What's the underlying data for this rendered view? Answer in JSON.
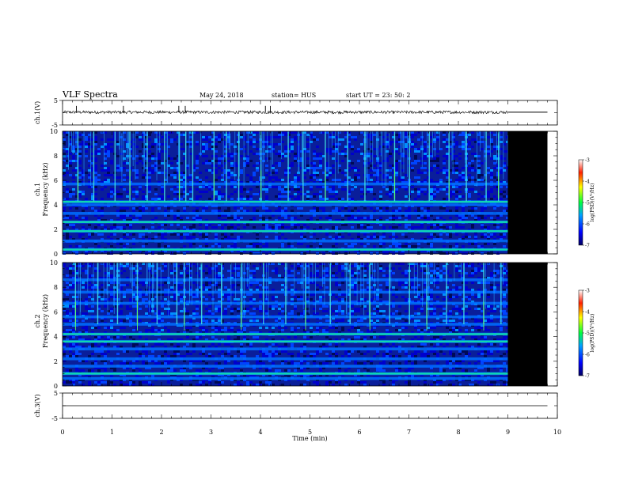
{
  "header": {
    "title": "VLF Spectra",
    "date": "May 24, 2018",
    "station": "station= HUS",
    "start": "start  UT  =   23: 50: 2"
  },
  "chart_data": [
    {
      "type": "line",
      "panel": "ch1-waveform",
      "ylabel": "ch.1(V)",
      "ylim": [
        -5,
        5
      ],
      "y_ticks": [
        5,
        -5
      ],
      "xlim": [
        0,
        10
      ],
      "data_end_min": 9.0,
      "trace_end_min": 9.8,
      "series": [
        {
          "baseline_v": 0.2,
          "noise_amplitude_v": 0.6,
          "spikes_min": [
            0.28,
            1.23,
            2.35,
            2.48,
            4.1,
            4.2
          ]
        }
      ]
    },
    {
      "type": "heatmap",
      "panel": "ch1-spectrogram",
      "ylabel_channel": "ch.1",
      "ylabel": "Frequency  (kHz)",
      "ylim": [
        0,
        10
      ],
      "y_ticks": [
        0,
        2,
        4,
        6,
        8,
        10
      ],
      "xlim": [
        0,
        10
      ],
      "data_end_min": 9.0,
      "no_data_end_min": 9.8,
      "colorbar": {
        "label": "log(PSD)(V²/Hz)",
        "range": [
          -7,
          -3
        ],
        "ticks": [
          -3,
          -4,
          -5,
          -6,
          -7
        ]
      },
      "bands_khz": [
        0.35,
        1.05,
        1.85,
        2.6,
        3.3,
        4.0,
        4.25,
        5.7
      ],
      "strong_bands_khz": [
        0.35,
        1.85,
        2.6,
        4.25
      ],
      "sferic_times_min": [
        0.3,
        0.62,
        1.05,
        1.35,
        1.7,
        2.05,
        2.35,
        2.48,
        2.62,
        3.05,
        3.3,
        3.55,
        4.0,
        4.55,
        4.85,
        5.3,
        5.75,
        6.1,
        6.7,
        7.0,
        7.4,
        7.8,
        8.15,
        8.55,
        8.8
      ]
    },
    {
      "type": "heatmap",
      "panel": "ch2-spectrogram",
      "ylabel_channel": "ch.2",
      "ylabel": "Frequency  (kHz)",
      "ylim": [
        0,
        10
      ],
      "y_ticks": [
        0,
        2,
        4,
        6,
        8,
        10
      ],
      "xlim": [
        0,
        10
      ],
      "data_end_min": 9.0,
      "no_data_end_min": 9.8,
      "colorbar": {
        "label": "log(PSD)(V²/Hz)",
        "range": [
          -7,
          -3
        ],
        "ticks": [
          -3,
          -4,
          -5,
          -6,
          -7
        ]
      },
      "bands_khz": [
        0.6,
        1.0,
        1.6,
        2.2,
        3.0,
        3.6,
        4.2,
        5.0,
        5.6,
        6.7,
        7.6,
        8.6
      ],
      "strong_bands_khz": [
        1.0,
        3.6,
        4.2
      ],
      "sferic_times_min": [
        0.25,
        0.7,
        1.1,
        1.5,
        1.9,
        2.3,
        2.45,
        2.8,
        3.2,
        3.6,
        4.05,
        4.5,
        4.9,
        5.4,
        5.8,
        6.2,
        6.6,
        7.0,
        7.35,
        7.75,
        8.1,
        8.5,
        8.85
      ]
    },
    {
      "type": "line",
      "panel": "ch3-waveform",
      "ylabel": "ch.3(V)",
      "ylim": [
        -5,
        5
      ],
      "y_ticks": [
        5,
        -5
      ],
      "xlim": [
        0,
        10
      ],
      "series": [
        {
          "value_v": 0.0
        }
      ]
    }
  ],
  "x_axis": {
    "label": "Time  (min)",
    "range": [
      0,
      10
    ],
    "ticks": [
      "0",
      "1",
      "2",
      "3",
      "4",
      "5",
      "6",
      "7",
      "8",
      "9",
      "10"
    ]
  }
}
